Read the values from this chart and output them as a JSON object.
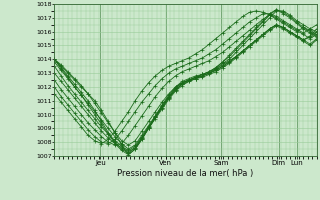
{
  "xlabel": "Pression niveau de la mer( hPa )",
  "bg_color": "#cce8cc",
  "grid_color": "#99cc99",
  "line_color": "#1a6b1a",
  "ylim": [
    1007,
    1018
  ],
  "yticks": [
    1007,
    1008,
    1009,
    1010,
    1011,
    1012,
    1013,
    1014,
    1015,
    1016,
    1017,
    1018
  ],
  "day_positions": [
    0.175,
    0.425,
    0.635,
    0.855,
    0.925
  ],
  "day_labels": [
    "Jeu",
    "Ven",
    "Sam",
    "Dim",
    "Lun"
  ],
  "series": [
    [
      1014.0,
      1013.5,
      1013.0,
      1012.5,
      1012.0,
      1011.5,
      1011.0,
      1010.3,
      1009.5,
      1008.7,
      1007.8,
      1007.1,
      1007.5,
      1008.2,
      1009.0,
      1009.8,
      1010.5,
      1011.2,
      1011.8,
      1012.2,
      1012.5,
      1012.7,
      1012.8,
      1013.0,
      1013.3,
      1013.7,
      1014.0,
      1014.5,
      1015.0,
      1015.5,
      1016.0,
      1016.5,
      1017.0,
      1017.5,
      1017.5,
      1017.2,
      1016.8,
      1016.5,
      1016.2,
      1016.0
    ],
    [
      1014.0,
      1013.4,
      1012.8,
      1012.2,
      1011.6,
      1011.0,
      1010.3,
      1009.5,
      1008.7,
      1008.0,
      1007.5,
      1007.2,
      1007.6,
      1008.3,
      1009.1,
      1009.9,
      1010.7,
      1011.4,
      1012.0,
      1012.4,
      1012.6,
      1012.8,
      1012.9,
      1013.1,
      1013.4,
      1013.8,
      1014.2,
      1014.7,
      1015.2,
      1015.7,
      1016.2,
      1016.7,
      1017.2,
      1017.6,
      1017.4,
      1017.1,
      1016.7,
      1016.3,
      1016.0,
      1015.7
    ],
    [
      1014.0,
      1013.3,
      1012.7,
      1012.0,
      1011.4,
      1010.7,
      1010.0,
      1009.3,
      1008.6,
      1007.9,
      1007.4,
      1007.1,
      1007.5,
      1008.2,
      1009.0,
      1009.8,
      1010.6,
      1011.3,
      1011.9,
      1012.3,
      1012.5,
      1012.7,
      1012.9,
      1013.1,
      1013.4,
      1013.8,
      1014.3,
      1014.8,
      1015.3,
      1015.8,
      1016.3,
      1016.8,
      1017.3,
      1017.6,
      1017.3,
      1017.0,
      1016.6,
      1016.2,
      1015.9,
      1015.6
    ],
    [
      1014.0,
      1013.6,
      1013.1,
      1012.6,
      1012.1,
      1011.5,
      1010.8,
      1010.1,
      1009.4,
      1008.7,
      1008.1,
      1007.8,
      1008.1,
      1008.8,
      1009.5,
      1010.2,
      1010.9,
      1011.5,
      1012.0,
      1012.3,
      1012.5,
      1012.6,
      1012.7,
      1012.9,
      1013.1,
      1013.4,
      1013.7,
      1014.1,
      1014.5,
      1014.9,
      1015.3,
      1015.7,
      1016.1,
      1016.4,
      1016.2,
      1015.9,
      1015.6,
      1015.3,
      1015.0,
      1015.4
    ],
    [
      1013.8,
      1013.2,
      1012.6,
      1012.0,
      1011.4,
      1010.8,
      1010.2,
      1009.6,
      1009.0,
      1008.4,
      1007.9,
      1007.5,
      1007.8,
      1008.5,
      1009.2,
      1009.9,
      1010.6,
      1011.3,
      1011.9,
      1012.3,
      1012.5,
      1012.7,
      1012.9,
      1013.1,
      1013.3,
      1013.6,
      1013.9,
      1014.2,
      1014.6,
      1015.0,
      1015.4,
      1015.8,
      1016.2,
      1016.5,
      1016.3,
      1016.0,
      1015.7,
      1015.4,
      1015.1,
      1015.5
    ],
    [
      1013.5,
      1012.8,
      1012.1,
      1011.5,
      1010.9,
      1010.3,
      1009.7,
      1009.1,
      1008.6,
      1008.1,
      1007.7,
      1007.4,
      1007.7,
      1008.4,
      1009.1,
      1009.8,
      1010.5,
      1011.2,
      1011.8,
      1012.2,
      1012.4,
      1012.6,
      1012.8,
      1013.0,
      1013.2,
      1013.5,
      1013.8,
      1014.2,
      1014.6,
      1015.0,
      1015.4,
      1015.8,
      1016.2,
      1016.5,
      1016.3,
      1016.0,
      1015.7,
      1015.4,
      1015.6,
      1016.0
    ],
    [
      1013.0,
      1012.4,
      1011.8,
      1011.2,
      1010.6,
      1010.0,
      1009.4,
      1008.8,
      1008.3,
      1007.9,
      1007.6,
      1007.3,
      1007.6,
      1008.3,
      1009.0,
      1009.7,
      1010.4,
      1011.1,
      1011.7,
      1012.1,
      1012.4,
      1012.6,
      1012.8,
      1013.0,
      1013.2,
      1013.5,
      1013.8,
      1014.2,
      1014.6,
      1015.0,
      1015.4,
      1015.8,
      1016.2,
      1016.5,
      1016.3,
      1016.0,
      1015.7,
      1015.4,
      1015.7,
      1016.2
    ],
    [
      1012.5,
      1011.8,
      1011.2,
      1010.6,
      1010.0,
      1009.4,
      1008.9,
      1008.4,
      1008.0,
      1007.8,
      1007.9,
      1008.5,
      1009.2,
      1009.9,
      1010.6,
      1011.3,
      1011.9,
      1012.4,
      1012.8,
      1013.1,
      1013.3,
      1013.5,
      1013.7,
      1013.9,
      1014.2,
      1014.5,
      1014.9,
      1015.3,
      1015.7,
      1016.1,
      1016.5,
      1016.9,
      1017.2,
      1017.0,
      1016.7,
      1016.4,
      1016.1,
      1015.8,
      1015.5,
      1015.8
    ],
    [
      1012.0,
      1011.3,
      1010.7,
      1010.1,
      1009.5,
      1008.9,
      1008.4,
      1008.0,
      1007.9,
      1008.2,
      1008.8,
      1009.5,
      1010.2,
      1010.9,
      1011.5,
      1012.1,
      1012.6,
      1013.0,
      1013.3,
      1013.5,
      1013.7,
      1013.9,
      1014.1,
      1014.4,
      1014.7,
      1015.1,
      1015.5,
      1015.9,
      1016.3,
      1016.7,
      1017.0,
      1017.3,
      1017.3,
      1017.1,
      1016.8,
      1016.5,
      1016.2,
      1015.9,
      1016.2,
      1016.5
    ],
    [
      1011.5,
      1010.9,
      1010.3,
      1009.7,
      1009.1,
      1008.5,
      1008.1,
      1007.9,
      1008.2,
      1008.8,
      1009.5,
      1010.2,
      1011.0,
      1011.7,
      1012.3,
      1012.8,
      1013.2,
      1013.5,
      1013.7,
      1013.9,
      1014.1,
      1014.4,
      1014.7,
      1015.1,
      1015.5,
      1015.9,
      1016.3,
      1016.7,
      1017.1,
      1017.4,
      1017.5,
      1017.4,
      1017.2,
      1016.9,
      1016.6,
      1016.3,
      1016.0,
      1016.3,
      1016.1,
      1015.8
    ]
  ]
}
